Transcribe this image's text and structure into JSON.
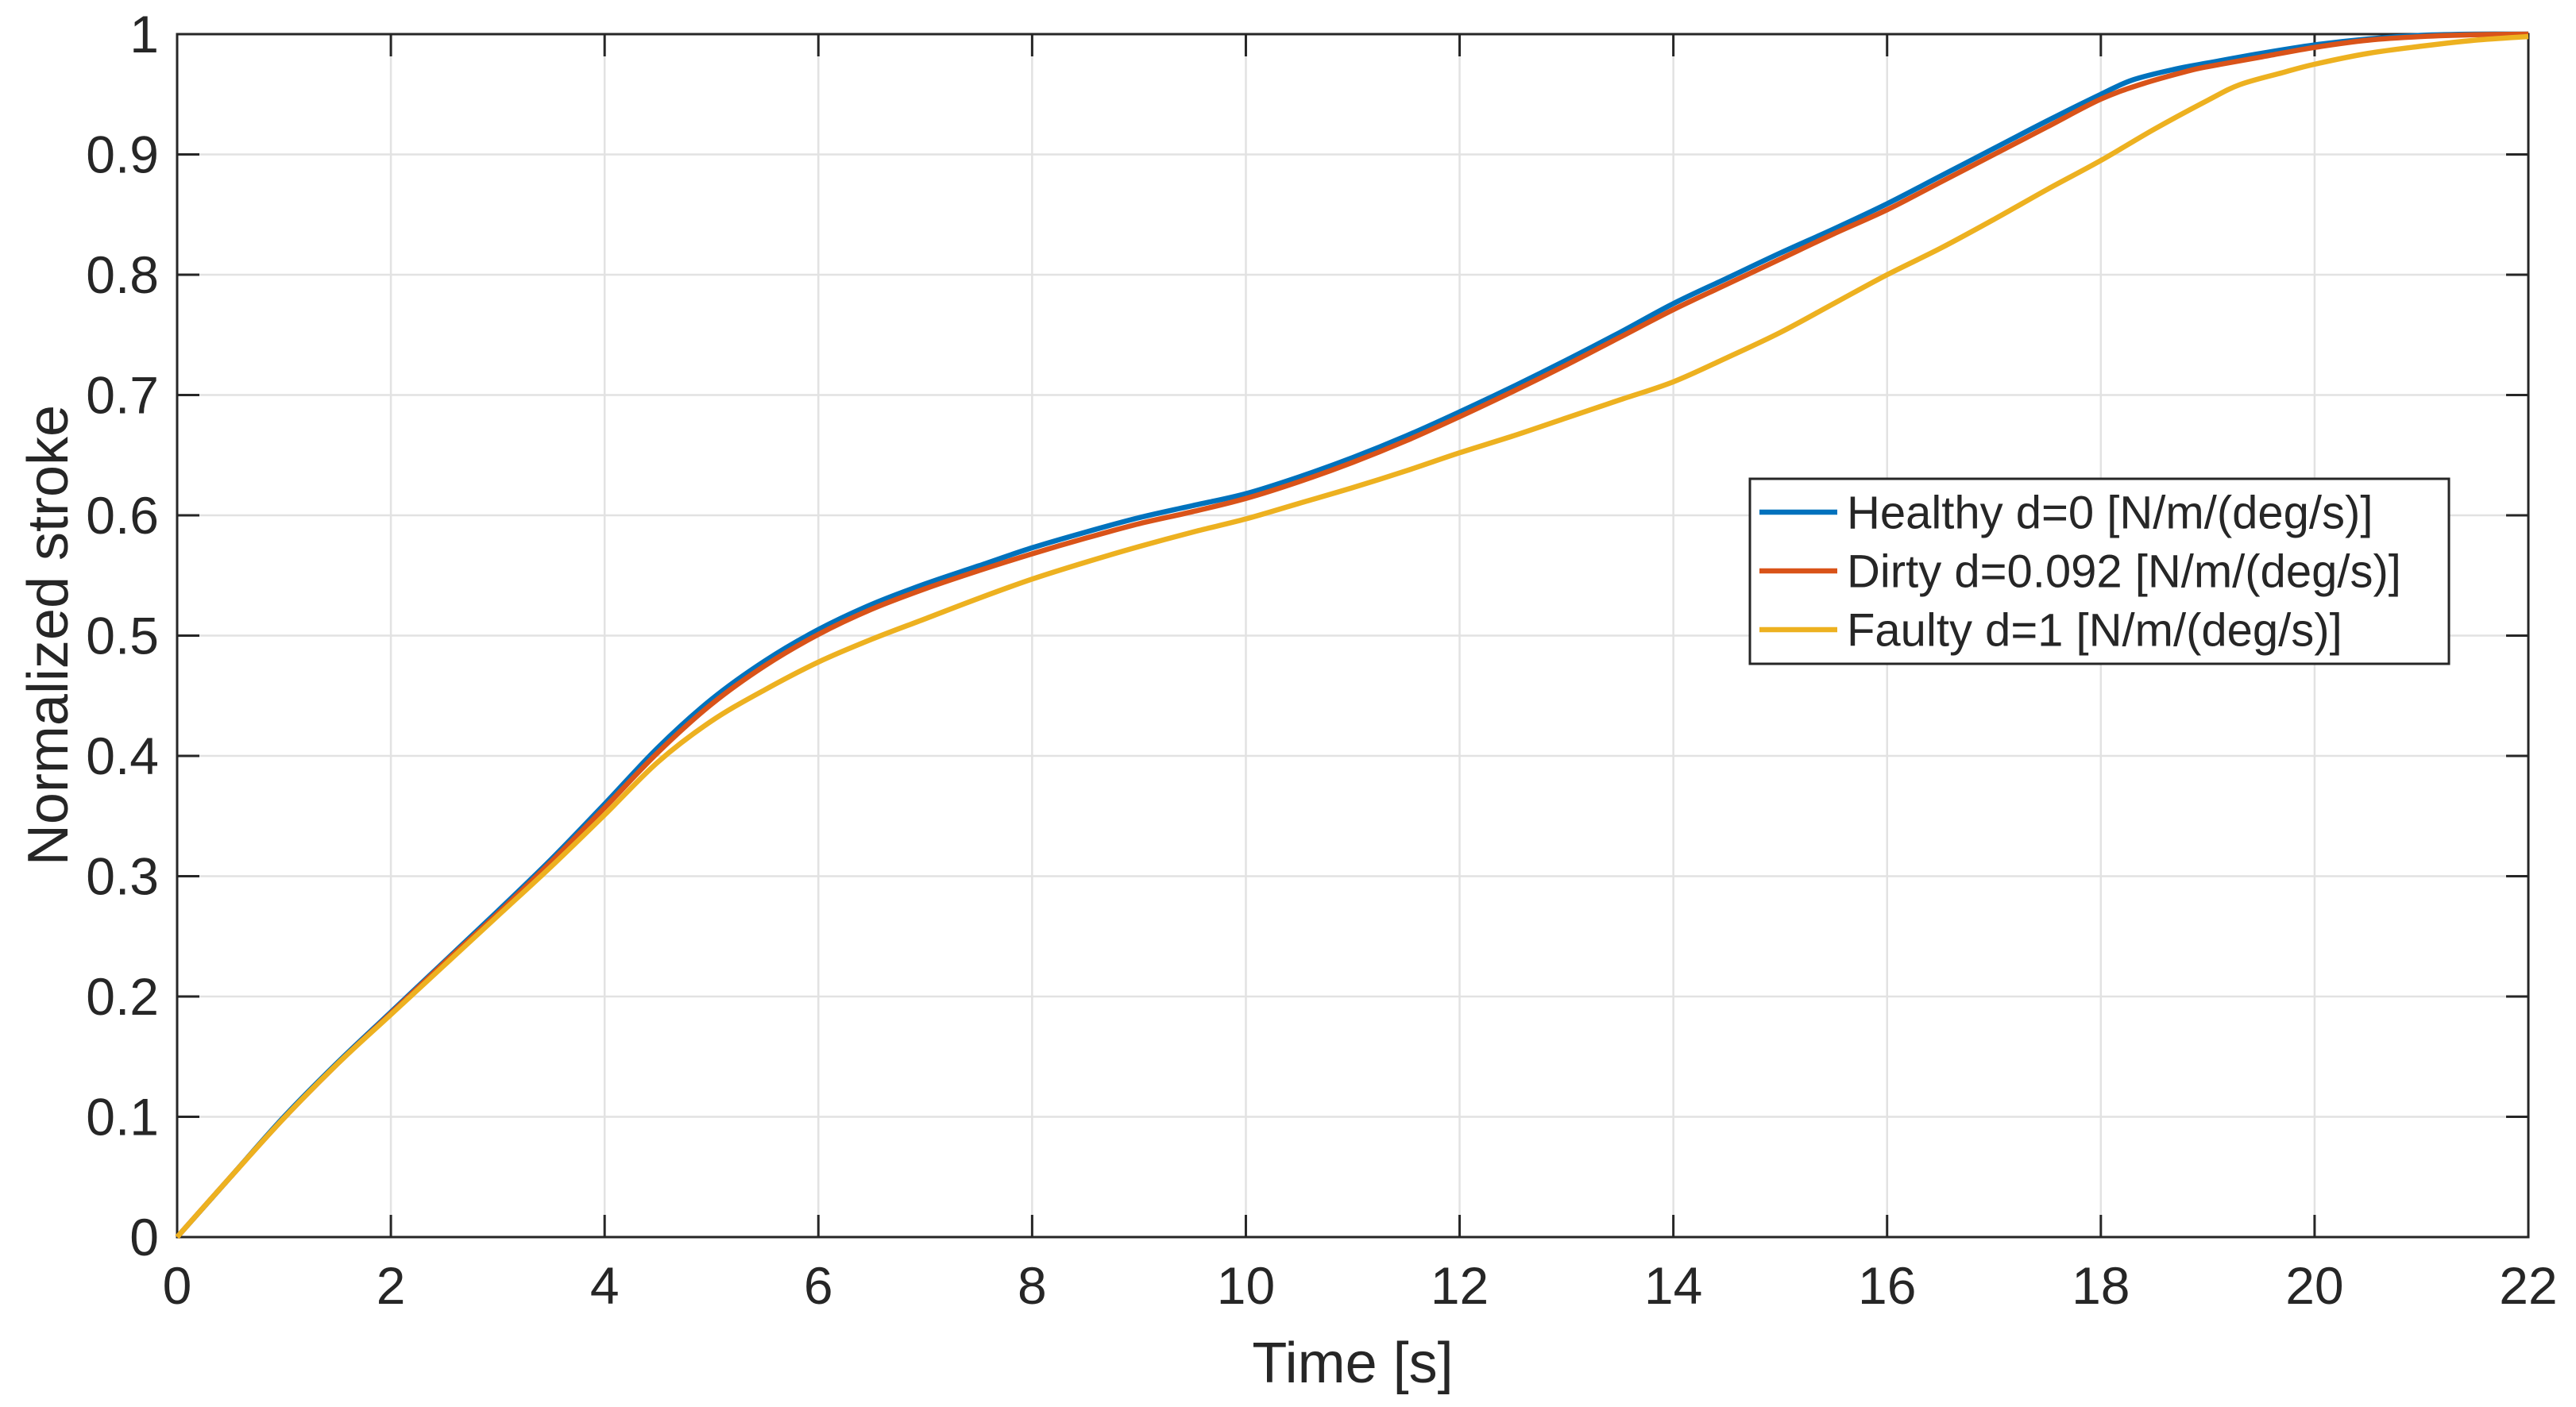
{
  "styles": {
    "background": "#ffffff",
    "axis_color": "#262626",
    "grid_color": "#e2e2e2",
    "text_color": "#262626",
    "plot_border_width": 3,
    "grid_width": 2.5,
    "line_width": 6.5,
    "tick_length": 28
  },
  "chart_data": {
    "type": "line",
    "title": "",
    "xlabel": "Time [s]",
    "ylabel": "Normalized stroke",
    "xlim": [
      0,
      22
    ],
    "ylim": [
      0,
      1
    ],
    "grid": true,
    "legend_position": "right-center",
    "xticks": [
      0,
      2,
      4,
      6,
      8,
      10,
      12,
      14,
      16,
      18,
      20,
      22
    ],
    "xtick_labels": [
      "0",
      "2",
      "4",
      "6",
      "8",
      "10",
      "12",
      "14",
      "16",
      "18",
      "20",
      "22"
    ],
    "yticks": [
      0,
      0.1,
      0.2,
      0.3,
      0.4,
      0.5,
      0.6,
      0.7,
      0.8,
      0.9,
      1
    ],
    "ytick_labels": [
      "0",
      "0.1",
      "0.2",
      "0.3",
      "0.4",
      "0.5",
      "0.6",
      "0.7",
      "0.8",
      "0.9",
      "1"
    ],
    "series": [
      {
        "name": "Healthy d=0 [N/m/(deg/s)]",
        "color": "#0072BD",
        "x": [
          0,
          0.5,
          1,
          1.5,
          2,
          2.5,
          3,
          3.5,
          4,
          4.5,
          5,
          5.5,
          6,
          6.5,
          7,
          7.5,
          8,
          8.5,
          9,
          9.5,
          10,
          10.5,
          11,
          11.5,
          12,
          12.5,
          13,
          13.5,
          14,
          14.5,
          15,
          15.5,
          16,
          16.5,
          17,
          17.5,
          18,
          18.3,
          18.7,
          19,
          19.5,
          20,
          20.5,
          21,
          21.5,
          22
        ],
        "y": [
          0,
          0.05,
          0.1,
          0.145,
          0.187,
          0.229,
          0.271,
          0.314,
          0.36,
          0.407,
          0.447,
          0.479,
          0.505,
          0.526,
          0.543,
          0.558,
          0.573,
          0.586,
          0.598,
          0.608,
          0.618,
          0.632,
          0.648,
          0.666,
          0.686,
          0.707,
          0.729,
          0.752,
          0.776,
          0.797,
          0.818,
          0.838,
          0.859,
          0.882,
          0.905,
          0.928,
          0.95,
          0.962,
          0.971,
          0.976,
          0.984,
          0.991,
          0.996,
          0.999,
          1,
          1
        ]
      },
      {
        "name": "Dirty d=0.092 [N/m/(deg/s)]",
        "color": "#D95319",
        "x": [
          0,
          0.5,
          1,
          1.5,
          2,
          2.5,
          3,
          3.5,
          4,
          4.5,
          5,
          5.5,
          6,
          6.5,
          7,
          7.5,
          8,
          8.5,
          9,
          9.5,
          10,
          10.5,
          11,
          11.5,
          12,
          12.5,
          13,
          13.5,
          14,
          14.5,
          15,
          15.5,
          16,
          16.5,
          17,
          17.5,
          18,
          18.4,
          18.8,
          19,
          19.5,
          20,
          20.5,
          21,
          21.5,
          22
        ],
        "y": [
          0,
          0.05,
          0.099,
          0.144,
          0.186,
          0.228,
          0.269,
          0.312,
          0.357,
          0.403,
          0.443,
          0.475,
          0.501,
          0.522,
          0.539,
          0.554,
          0.568,
          0.581,
          0.593,
          0.603,
          0.614,
          0.628,
          0.644,
          0.662,
          0.682,
          0.703,
          0.725,
          0.748,
          0.771,
          0.792,
          0.813,
          0.834,
          0.854,
          0.877,
          0.9,
          0.923,
          0.946,
          0.959,
          0.969,
          0.973,
          0.981,
          0.989,
          0.995,
          0.998,
          0.9995,
          1
        ]
      },
      {
        "name": "Faulty d=1 [N/m/(deg/s)]",
        "color": "#EDB120",
        "x": [
          0,
          0.5,
          1,
          1.5,
          2,
          2.5,
          3,
          3.5,
          4,
          4.5,
          5,
          5.5,
          6,
          6.5,
          7,
          7.5,
          8,
          8.5,
          9,
          9.5,
          10,
          10.5,
          11,
          11.5,
          12,
          12.5,
          13,
          13.5,
          14,
          14.5,
          15,
          15.5,
          16,
          16.5,
          17,
          17.5,
          18,
          18.5,
          19,
          19.3,
          19.7,
          20,
          20.5,
          21,
          21.5,
          22
        ],
        "y": [
          0,
          0.05,
          0.099,
          0.144,
          0.185,
          0.226,
          0.267,
          0.308,
          0.351,
          0.395,
          0.429,
          0.455,
          0.478,
          0.497,
          0.514,
          0.531,
          0.547,
          0.561,
          0.574,
          0.586,
          0.597,
          0.61,
          0.623,
          0.637,
          0.652,
          0.666,
          0.681,
          0.696,
          0.711,
          0.731,
          0.752,
          0.776,
          0.8,
          0.822,
          0.846,
          0.871,
          0.895,
          0.921,
          0.945,
          0.958,
          0.968,
          0.975,
          0.984,
          0.99,
          0.995,
          0.998
        ]
      }
    ]
  }
}
